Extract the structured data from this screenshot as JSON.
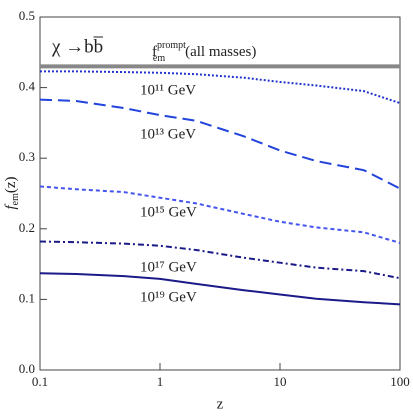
{
  "chart_data": {
    "type": "line",
    "title": "χ →bb̅",
    "prompt_label": {
      "base": "f",
      "sub": "em",
      "sup": "prompt",
      "rest": "(all masses)"
    },
    "x_label": "z",
    "y_label": {
      "base": "f",
      "sub": "em",
      "rest": "(z)"
    },
    "x": [
      0.1,
      0.2,
      0.5,
      1,
      2,
      5,
      10,
      20,
      50,
      100
    ],
    "series": [
      {
        "name": "prompt",
        "color": "#888888",
        "style": "thick",
        "values": [
          0.43,
          0.43,
          0.43,
          0.43,
          0.43,
          0.43,
          0.43,
          0.43,
          0.43,
          0.43
        ]
      },
      {
        "name": "10¹¹ GeV",
        "color": "#2233cc",
        "style": "dotted",
        "values": [
          0.423,
          0.423,
          0.422,
          0.421,
          0.419,
          0.414,
          0.408,
          0.403,
          0.395,
          0.378
        ]
      },
      {
        "name": "10¹³ GeV",
        "color": "#2244dd",
        "style": "dashed",
        "values": [
          0.383,
          0.381,
          0.371,
          0.361,
          0.353,
          0.331,
          0.311,
          0.296,
          0.283,
          0.257
        ]
      },
      {
        "name": "10¹⁵ GeV",
        "color": "#4455ee",
        "style": "short-dashed",
        "values": [
          0.26,
          0.256,
          0.252,
          0.244,
          0.236,
          0.221,
          0.21,
          0.202,
          0.195,
          0.18
        ]
      },
      {
        "name": "10¹⁷ GeV",
        "color": "#1a1a88",
        "style": "dash-dot",
        "values": [
          0.182,
          0.181,
          0.179,
          0.176,
          0.17,
          0.159,
          0.152,
          0.145,
          0.14,
          0.13
        ]
      },
      {
        "name": "10¹⁹ GeV",
        "color": "#1a1a88",
        "style": "solid",
        "values": [
          0.137,
          0.136,
          0.133,
          0.129,
          0.122,
          0.113,
          0.107,
          0.101,
          0.096,
          0.093
        ]
      }
    ],
    "xscale": "log",
    "xlim": [
      0.1,
      100
    ],
    "xticks": [
      0.1,
      1,
      10,
      100
    ],
    "ylim": [
      0,
      0.5
    ],
    "yticks": [
      {
        "value": 0,
        "label": "0.0"
      },
      0.1,
      0.2,
      0.3,
      0.4,
      0.5
    ]
  }
}
